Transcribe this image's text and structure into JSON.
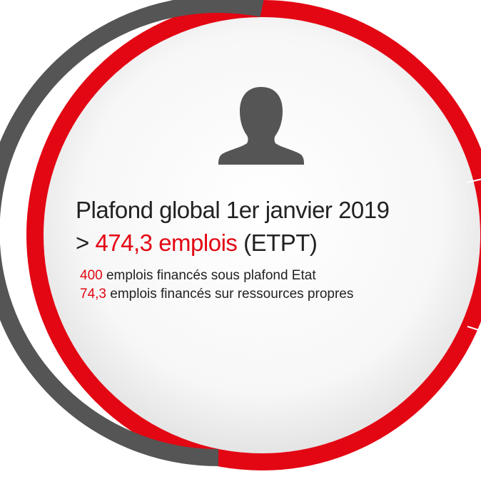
{
  "headline": {
    "title": "Plafond global 1er janvier 2019",
    "prefix": ">",
    "value": "474,3 emplois",
    "unit": "(ETPT)"
  },
  "details": [
    {
      "value": "400",
      "text": "emplois financés sous plafond Etat"
    },
    {
      "value": "74,3",
      "text": "emplois financés sur ressources propres"
    }
  ]
}
